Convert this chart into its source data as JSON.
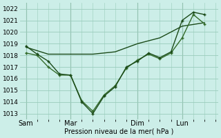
{
  "xlabel": "Pression niveau de la mer( hPa )",
  "bg_color": "#cceee8",
  "grid_color": "#99ccbb",
  "line_color_dark": "#1a4a18",
  "line_color_mid": "#336b2a",
  "ylim": [
    1012.5,
    1022.5
  ],
  "yticks": [
    1013,
    1014,
    1015,
    1016,
    1017,
    1018,
    1019,
    1020,
    1021,
    1022
  ],
  "day_labels": [
    "Sam",
    "Mar",
    "Dim",
    "Lun"
  ],
  "day_positions": [
    0,
    36,
    90,
    126
  ],
  "vline_positions": [
    0,
    36,
    90,
    126
  ],
  "xlim": [
    -5,
    155
  ],
  "line1_x": [
    0,
    9,
    18,
    27,
    36,
    45,
    54,
    63,
    72,
    81,
    90,
    99,
    108,
    117,
    126,
    135,
    144
  ],
  "line1_y": [
    1018.8,
    1018.1,
    1017.5,
    1016.4,
    1016.3,
    1014.0,
    1013.0,
    1014.5,
    1015.3,
    1017.0,
    1017.5,
    1018.2,
    1017.8,
    1018.3,
    1021.0,
    1021.7,
    1021.5
  ],
  "line2_x": [
    0,
    9,
    18,
    27,
    36,
    45,
    54,
    63,
    72,
    81,
    90,
    99,
    108,
    117,
    126,
    135,
    144
  ],
  "line2_y": [
    1018.2,
    1018.0,
    1017.0,
    1016.3,
    1016.3,
    1014.1,
    1013.2,
    1014.6,
    1015.4,
    1016.9,
    1017.6,
    1018.1,
    1017.7,
    1018.2,
    1019.5,
    1021.5,
    1020.7
  ],
  "line3_x": [
    0,
    18,
    36,
    54,
    72,
    90,
    108,
    126,
    144
  ],
  "line3_y": [
    1018.7,
    1018.1,
    1018.1,
    1018.1,
    1018.3,
    1019.0,
    1019.5,
    1020.5,
    1020.8
  ]
}
